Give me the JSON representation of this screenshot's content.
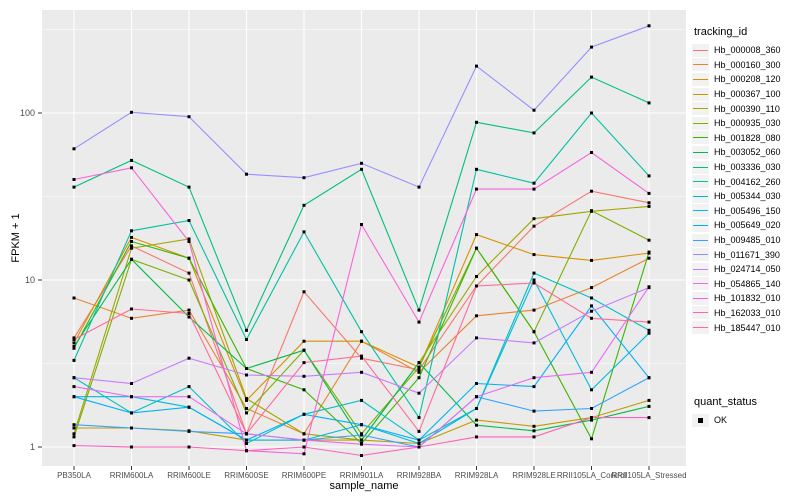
{
  "colors": {
    "page_bg": "#FFFFFF",
    "panel_bg": "#EBEBEB",
    "grid": "#FFFFFF",
    "tick_text": "#4D4D4D",
    "axis_text": "#000000",
    "tick_mark": "#333333",
    "point": "#000000",
    "legend_key_bg": "#F2F2F2"
  },
  "chart_data": {
    "type": "line",
    "title": "",
    "xlabel": "sample_name",
    "ylabel": "FPKM + 1",
    "yscale": "log",
    "ylim": [
      0.77,
      413
    ],
    "yticks": [
      1,
      10,
      100
    ],
    "ytick_labels": [
      "1",
      "10",
      "100"
    ],
    "yminor": [
      3.1623,
      31.623,
      316.23
    ],
    "grid": "on",
    "legend_position": "right",
    "legend_title": "tracking_id",
    "point_shape": "filled-square",
    "categories": [
      "PB350LA",
      "RRIM600LA",
      "RRIM600LE",
      "RRIM600SE",
      "RRIM600PE",
      "RRIM901LA",
      "RRIM928BA",
      "RRIM928LA",
      "RRIM928LE",
      "RRII105LA_Control",
      "RRII105LA_Stressed"
    ],
    "series": [
      {
        "name": "Hb_000008_360",
        "color": "#F8766D",
        "values": [
          4.5,
          16,
          11,
          1.2,
          8.5,
          3.4,
          2.9,
          9.2,
          21,
          34,
          29
        ]
      },
      {
        "name": "Hb_000160_300",
        "color": "#EA8331",
        "values": [
          7.8,
          5.9,
          6.6,
          1.7,
          1.2,
          4.3,
          2.8,
          6.1,
          6.6,
          9.0,
          13.5
        ]
      },
      {
        "name": "Hb_000208_120",
        "color": "#D89000",
        "values": [
          4.2,
          18,
          13.5,
          1.9,
          4.3,
          4.3,
          3.0,
          18.7,
          14.2,
          13.1,
          14.5
        ]
      },
      {
        "name": "Hb_000367_100",
        "color": "#C09B00",
        "values": [
          1.3,
          1.3,
          1.25,
          1.1,
          1.1,
          1.1,
          1.05,
          1.45,
          1.33,
          1.5,
          1.9
        ]
      },
      {
        "name": "Hb_000390_110",
        "color": "#A3A500",
        "values": [
          1.2,
          15.5,
          17.6,
          1.95,
          1.2,
          1.1,
          3.2,
          10.5,
          23.3,
          25.8,
          27.6
        ]
      },
      {
        "name": "Hb_000935_030",
        "color": "#7CAE00",
        "values": [
          1.15,
          13.3,
          10,
          1.6,
          3.8,
          1.2,
          3.0,
          15.5,
          4.9,
          26,
          17.3
        ]
      },
      {
        "name": "Hb_001828_080",
        "color": "#39B600",
        "values": [
          3.9,
          17,
          13.5,
          2.95,
          2.2,
          1.05,
          2.6,
          15.5,
          4.9,
          1.12,
          14.7
        ]
      },
      {
        "name": "Hb_003052_060",
        "color": "#00BB4E",
        "values": [
          4.0,
          13.3,
          6.0,
          2.95,
          3.8,
          1.1,
          3.2,
          1.35,
          1.25,
          1.45,
          1.75
        ]
      },
      {
        "name": "Hb_003336_030",
        "color": "#00BF7D",
        "values": [
          36,
          52,
          36,
          5.0,
          28,
          46,
          6.6,
          88,
          76,
          164,
          115
        ]
      },
      {
        "name": "Hb_004162_260",
        "color": "#00C1A3",
        "values": [
          3.3,
          19.7,
          22.7,
          4.4,
          19.4,
          4.9,
          1.5,
          46,
          38,
          100,
          42
        ]
      },
      {
        "name": "Hb_005344_030",
        "color": "#00BFC4",
        "values": [
          2.6,
          1.6,
          2.3,
          1.05,
          1.57,
          1.9,
          1.1,
          1.7,
          11,
          7.8,
          5.0
        ]
      },
      {
        "name": "Hb_005496_150",
        "color": "#00BAE0",
        "values": [
          2.0,
          2.0,
          1.73,
          1.1,
          1.1,
          1.36,
          1.05,
          1.7,
          10,
          2.2,
          4.8
        ]
      },
      {
        "name": "Hb_005649_020",
        "color": "#00B0F6",
        "values": [
          2.0,
          1.6,
          1.73,
          1.1,
          1.57,
          1.36,
          1.1,
          2.4,
          2.3,
          7.0,
          2.6
        ]
      },
      {
        "name": "Hb_009485_010",
        "color": "#35A2FF",
        "values": [
          1.36,
          1.3,
          1.24,
          1.2,
          1.1,
          1.18,
          1.0,
          2.0,
          1.64,
          1.7,
          2.6
        ]
      },
      {
        "name": "Hb_011671_390",
        "color": "#9590FF",
        "values": [
          61,
          101,
          95,
          43,
          41,
          50,
          36,
          191,
          104,
          248,
          333
        ]
      },
      {
        "name": "Hb_024714_050",
        "color": "#C77CFF",
        "values": [
          2.6,
          2.4,
          3.4,
          2.7,
          2.65,
          2.8,
          2.1,
          4.5,
          4.2,
          6.5,
          9.0
        ]
      },
      {
        "name": "Hb_054865_140",
        "color": "#E76BF3",
        "values": [
          2.3,
          2.0,
          2.0,
          1.2,
          1.1,
          1.04,
          1.0,
          2.0,
          2.6,
          2.8,
          9.1
        ]
      },
      {
        "name": "Hb_101832_010",
        "color": "#FA62DB",
        "values": [
          40,
          47,
          17,
          0.95,
          0.91,
          21.5,
          5.6,
          35,
          35,
          58,
          33
        ]
      },
      {
        "name": "Hb_162033_010",
        "color": "#FF62BC",
        "values": [
          1.02,
          1.0,
          1.0,
          0.95,
          1.0,
          0.89,
          1.0,
          1.15,
          1.15,
          1.5,
          1.5
        ]
      },
      {
        "name": "Hb_185447_010",
        "color": "#FF6A98",
        "values": [
          4.4,
          6.7,
          6.3,
          1.2,
          3.2,
          3.5,
          1.24,
          9.2,
          9.6,
          5.9,
          5.6
        ]
      }
    ],
    "quant_status": {
      "title": "quant_status",
      "items": [
        {
          "label": "OK",
          "shape": "filled-square",
          "color": "#000000"
        }
      ]
    }
  }
}
